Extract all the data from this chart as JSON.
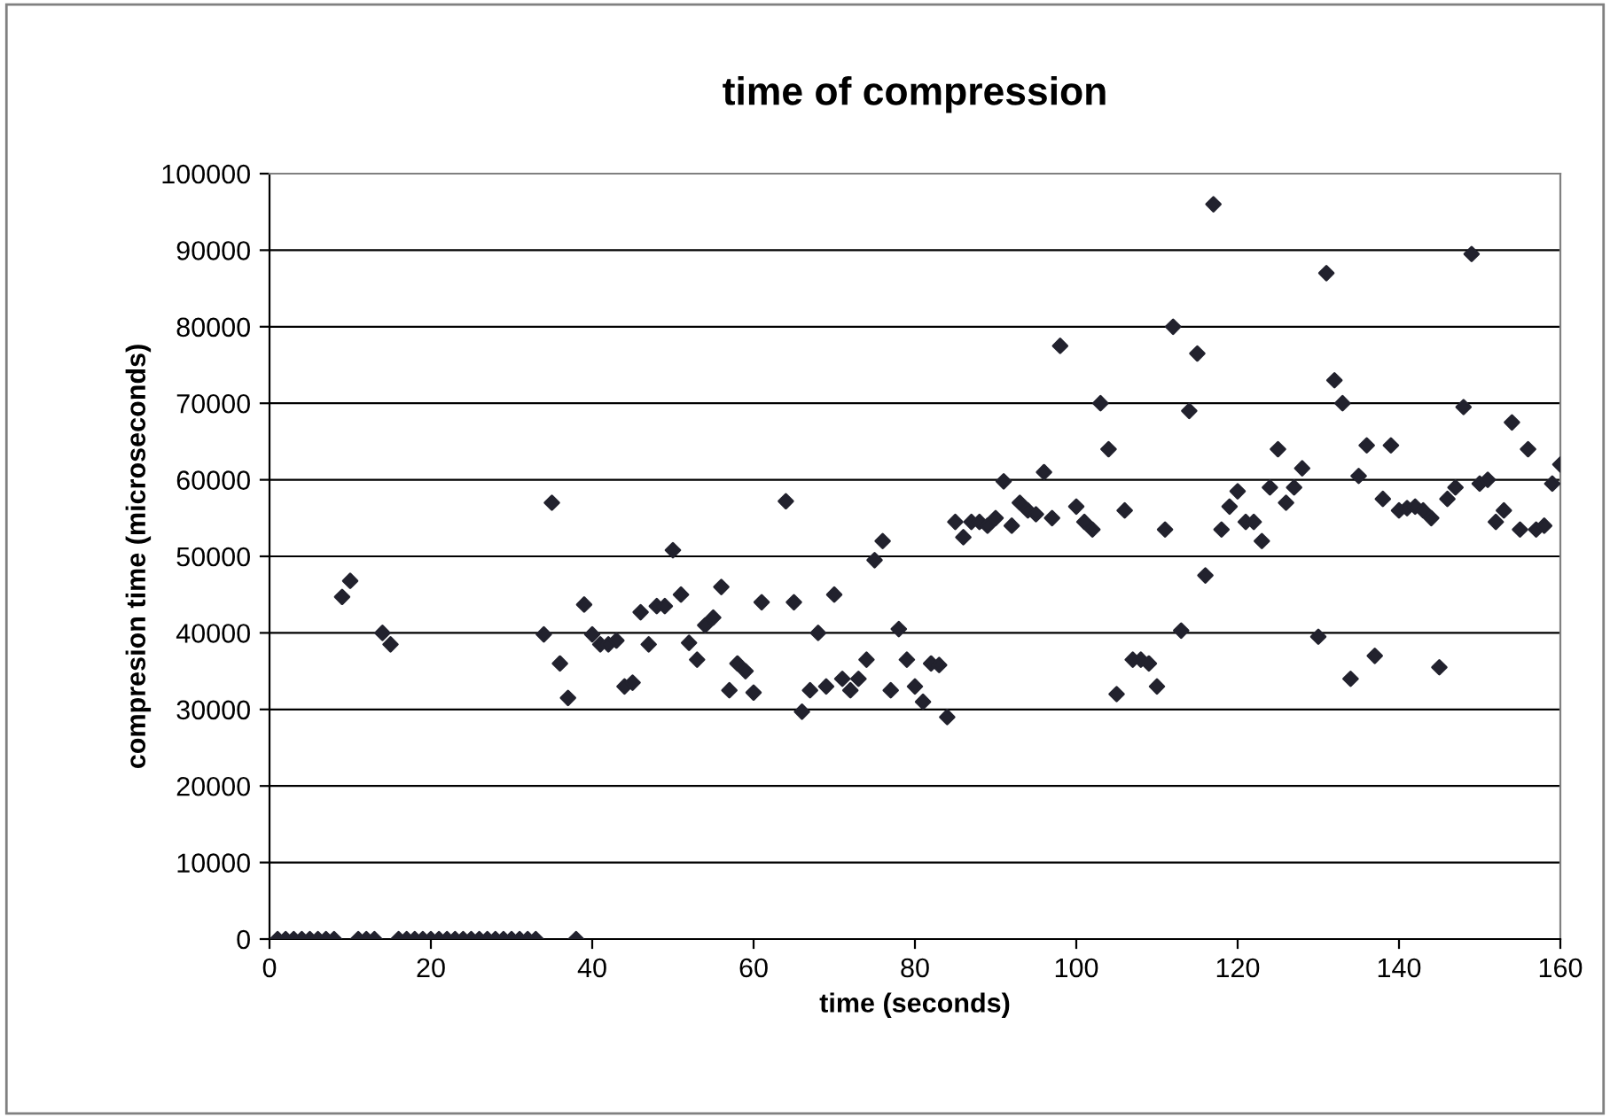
{
  "chart_data": {
    "type": "scatter",
    "title": "time of compression",
    "xlabel": "time (seconds)",
    "ylabel": "compresion time (microseconds)",
    "xlim": [
      0,
      160
    ],
    "xticks": [
      0,
      20,
      40,
      60,
      80,
      100,
      120,
      140,
      160
    ],
    "ylim": [
      0,
      100000
    ],
    "yticks": [
      0,
      10000,
      20000,
      30000,
      40000,
      50000,
      60000,
      70000,
      80000,
      90000,
      100000
    ],
    "grid": "y",
    "legend": false,
    "marker": "diamond",
    "series": [
      {
        "color": "#22222e",
        "x": [
          1,
          2,
          3,
          4,
          5,
          6,
          7,
          8,
          9,
          10,
          11,
          12,
          13,
          14,
          15,
          16,
          17,
          18,
          19,
          20,
          21,
          22,
          23,
          24,
          25,
          26,
          27,
          28,
          29,
          30,
          31,
          32,
          33,
          34,
          35,
          36,
          37,
          38,
          39,
          40,
          41,
          42,
          43,
          44,
          45,
          46,
          47,
          48,
          49,
          50,
          51,
          52,
          53,
          54,
          55,
          56,
          57,
          58,
          59,
          60,
          61,
          64,
          65,
          66,
          67,
          68,
          69,
          70,
          71,
          72,
          73,
          74,
          75,
          76,
          77,
          78,
          79,
          80,
          81,
          82,
          83,
          84,
          85,
          86,
          87,
          88,
          89,
          90,
          91,
          92,
          93,
          94,
          95,
          96,
          97,
          98,
          100,
          101,
          102,
          103,
          104,
          105,
          106,
          107,
          108,
          109,
          110,
          111,
          112,
          113,
          114,
          115,
          116,
          117,
          118,
          119,
          120,
          121,
          122,
          123,
          124,
          125,
          126,
          127,
          128,
          130,
          131,
          132,
          133,
          134,
          135,
          136,
          137,
          138,
          139,
          140,
          141,
          142,
          143,
          144,
          145,
          146,
          147,
          148,
          149,
          150,
          151,
          152,
          153,
          154,
          155,
          156,
          157,
          158,
          159,
          160
        ],
        "values": [
          0,
          0,
          0,
          0,
          0,
          0,
          0,
          0,
          44700,
          46800,
          0,
          0,
          0,
          40000,
          38500,
          0,
          0,
          0,
          0,
          0,
          0,
          0,
          0,
          0,
          0,
          0,
          0,
          0,
          0,
          0,
          0,
          0,
          0,
          39800,
          57000,
          36000,
          31500,
          0,
          43700,
          39800,
          38500,
          38500,
          39000,
          33000,
          33500,
          42700,
          38500,
          43500,
          43500,
          50800,
          45000,
          38700,
          36500,
          41000,
          42000,
          46000,
          32500,
          36000,
          35000,
          32200,
          44000,
          57200,
          44000,
          29700,
          32500,
          40000,
          33000,
          45000,
          34000,
          32500,
          34000,
          36500,
          49500,
          52000,
          32500,
          40500,
          36500,
          33000,
          31000,
          36000,
          35800,
          29000,
          54500,
          52500,
          54500,
          54500,
          54000,
          55000,
          59800,
          54000,
          57000,
          56000,
          55500,
          61000,
          55000,
          77500,
          56500,
          54500,
          53500,
          70000,
          64000,
          32000,
          56000,
          36500,
          36500,
          36000,
          33000,
          53500,
          80000,
          40300,
          69000,
          76500,
          47500,
          96000,
          53500,
          56500,
          58500,
          54500,
          54500,
          52000,
          59000,
          64000,
          57000,
          59000,
          61500,
          39500,
          87000,
          73000,
          70000,
          34000,
          60500,
          64500,
          37000,
          57500,
          64500,
          56000,
          56300,
          56500,
          56000,
          55000,
          35500,
          57500,
          59000,
          69500,
          89500,
          59500,
          60000,
          54500,
          56000,
          67500,
          53500,
          64000,
          53500,
          54000,
          59500,
          62000
        ]
      }
    ]
  }
}
